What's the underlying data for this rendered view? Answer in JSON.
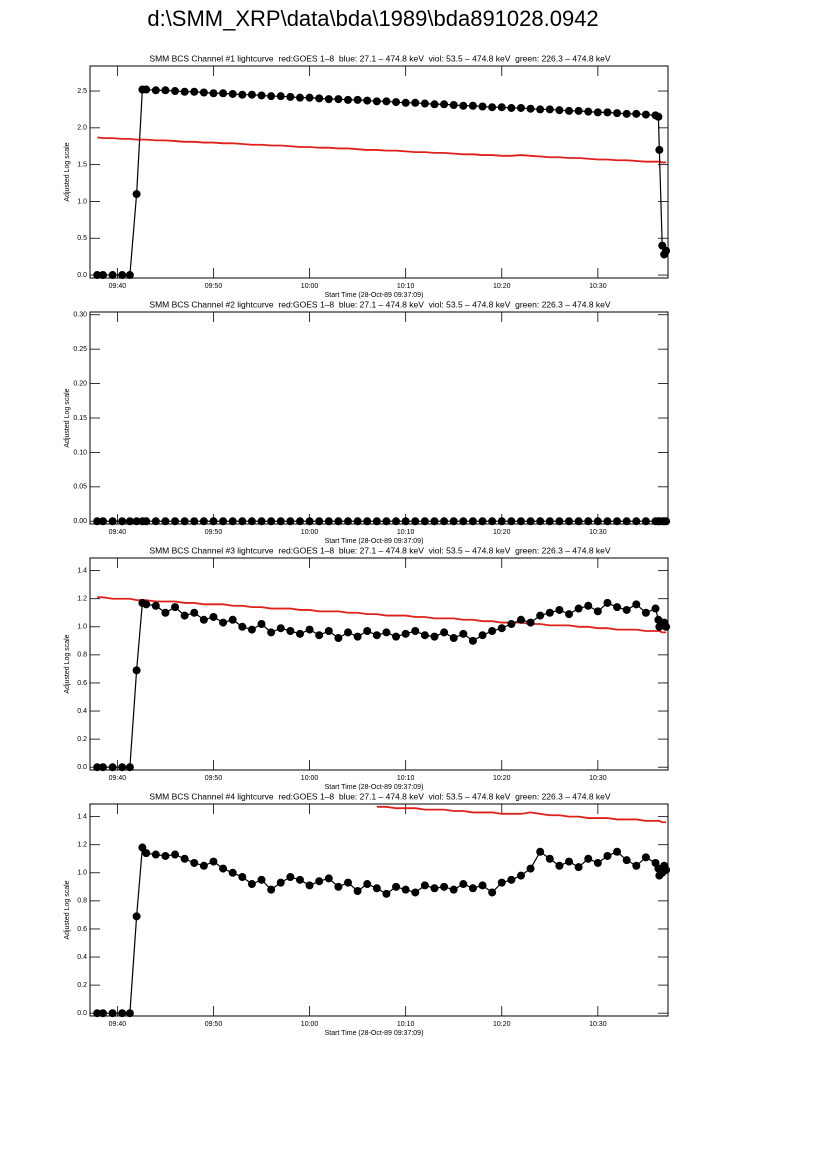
{
  "title": "d:\\SMM_XRP\\data\\bda\\1989\\bda891028.0942",
  "chart_data": [
    {
      "type": "line",
      "title": "SMM BCS Channel #1 lightcurve  red:GOES 1–8  blue: 27.1 – 474.8 keV  viol: 53.5 – 474.8 keV  green: 226.3 – 474.8 keV",
      "xlabel": "Start Time (28-Oct-89 09:37:09)",
      "ylabel": "Adjusted Log scale",
      "x": [
        577.9,
        578.5,
        579.5,
        580.5,
        581.3,
        582,
        582.6,
        583,
        584,
        585,
        586,
        587,
        588,
        589,
        590,
        591,
        592,
        593,
        594,
        595,
        596,
        597,
        598,
        599,
        600,
        601,
        602,
        603,
        604,
        605,
        606,
        607,
        608,
        609,
        610,
        611,
        612,
        613,
        614,
        615,
        616,
        617,
        618,
        619,
        620,
        621,
        622,
        623,
        624,
        625,
        626,
        627,
        628,
        629,
        630,
        631,
        632,
        633,
        634,
        635,
        636,
        636.3,
        636.4,
        636.7,
        636.9,
        637.1
      ],
      "xlim": [
        577.15,
        637.3
      ],
      "xticks": [
        {
          "value": 580,
          "label": "09:40"
        },
        {
          "value": 590,
          "label": "09:50"
        },
        {
          "value": 600,
          "label": "10:00"
        },
        {
          "value": 610,
          "label": "10:10"
        },
        {
          "value": 620,
          "label": "10:20"
        },
        {
          "value": 630,
          "label": "10:30"
        }
      ],
      "ylim": [
        -0.04,
        2.84
      ],
      "yticks": [
        {
          "value": 0,
          "label": "0.0"
        },
        {
          "value": 0.5,
          "label": "0.5"
        },
        {
          "value": 1,
          "label": "1.0"
        },
        {
          "value": 1.5,
          "label": "1.5"
        },
        {
          "value": 2,
          "label": "2.0"
        },
        {
          "value": 2.5,
          "label": "2.5"
        }
      ],
      "series": [
        {
          "color": "#e0201b",
          "values": [
            1.87,
            1.86,
            1.86,
            1.85,
            1.85,
            1.84,
            1.84,
            1.84,
            1.83,
            1.83,
            1.82,
            1.81,
            1.81,
            1.8,
            1.8,
            1.79,
            1.79,
            1.78,
            1.77,
            1.77,
            1.76,
            1.76,
            1.75,
            1.74,
            1.74,
            1.73,
            1.73,
            1.72,
            1.72,
            1.71,
            1.7,
            1.7,
            1.69,
            1.69,
            1.68,
            1.67,
            1.67,
            1.66,
            1.66,
            1.65,
            1.64,
            1.64,
            1.63,
            1.63,
            1.62,
            1.62,
            1.63,
            1.62,
            1.61,
            1.6,
            1.6,
            1.59,
            1.59,
            1.58,
            1.57,
            1.57,
            1.56,
            1.56,
            1.55,
            1.54,
            1.54,
            1.54,
            1.54,
            1.53,
            1.53,
            1.53
          ]
        },
        {
          "color": "#000000",
          "marker": "circle",
          "values": [
            0,
            0,
            0,
            0,
            0,
            1.1,
            2.52,
            2.52,
            2.51,
            2.51,
            2.5,
            2.49,
            2.49,
            2.48,
            2.47,
            2.47,
            2.46,
            2.45,
            2.45,
            2.44,
            2.43,
            2.43,
            2.42,
            2.41,
            2.41,
            2.4,
            2.39,
            2.39,
            2.38,
            2.38,
            2.37,
            2.36,
            2.36,
            2.35,
            2.34,
            2.34,
            2.33,
            2.32,
            2.32,
            2.31,
            2.3,
            2.3,
            2.29,
            2.28,
            2.28,
            2.27,
            2.27,
            2.26,
            2.25,
            2.25,
            2.24,
            2.23,
            2.23,
            2.22,
            2.21,
            2.21,
            2.2,
            2.19,
            2.19,
            2.18,
            2.17,
            2.15,
            1.7,
            0.4,
            0.28,
            0.33
          ]
        }
      ]
    },
    {
      "type": "line",
      "title": "SMM BCS Channel #2 lightcurve  red:GOES 1–8  blue: 27.1 – 474.8 keV  viol: 53.5 – 474.8 keV  green: 226.3 – 474.8 keV",
      "xlabel": "Start Time (28-Oct-89 09:37:09)",
      "ylabel": "Adjusted Log scale",
      "x": [
        577.9,
        578.5,
        579.5,
        580.5,
        581.3,
        582,
        582.6,
        583,
        584,
        585,
        586,
        587,
        588,
        589,
        590,
        591,
        592,
        593,
        594,
        595,
        596,
        597,
        598,
        599,
        600,
        601,
        602,
        603,
        604,
        605,
        606,
        607,
        608,
        609,
        610,
        611,
        612,
        613,
        614,
        615,
        616,
        617,
        618,
        619,
        620,
        621,
        622,
        623,
        624,
        625,
        626,
        627,
        628,
        629,
        630,
        631,
        632,
        633,
        634,
        635,
        636,
        636.3,
        636.4,
        636.7,
        636.9,
        637.1
      ],
      "xlim": [
        577.15,
        637.3
      ],
      "xticks": [
        {
          "value": 580,
          "label": "09:40"
        },
        {
          "value": 590,
          "label": "09:50"
        },
        {
          "value": 600,
          "label": "10:00"
        },
        {
          "value": 610,
          "label": "10:10"
        },
        {
          "value": 620,
          "label": "10:20"
        },
        {
          "value": 630,
          "label": "10:30"
        }
      ],
      "ylim": [
        -0.004,
        0.304
      ],
      "yticks": [
        {
          "value": 0,
          "label": "0.00"
        },
        {
          "value": 0.05,
          "label": "0.05"
        },
        {
          "value": 0.1,
          "label": "0.10"
        },
        {
          "value": 0.15,
          "label": "0.15"
        },
        {
          "value": 0.2,
          "label": "0.20"
        },
        {
          "value": 0.25,
          "label": "0.25"
        },
        {
          "value": 0.3,
          "label": "0.30"
        }
      ],
      "series": [
        {
          "color": "#000000",
          "marker": "circle",
          "values": [
            0,
            0,
            0,
            0,
            0,
            0,
            0,
            0,
            0,
            0,
            0,
            0,
            0,
            0,
            0,
            0,
            0,
            0,
            0,
            0,
            0,
            0,
            0,
            0,
            0,
            0,
            0,
            0,
            0,
            0,
            0,
            0,
            0,
            0,
            0,
            0,
            0,
            0,
            0,
            0,
            0,
            0,
            0,
            0,
            0,
            0,
            0,
            0,
            0,
            0,
            0,
            0,
            0,
            0,
            0,
            0,
            0,
            0,
            0,
            0,
            0,
            0,
            0,
            0,
            0,
            0
          ]
        }
      ]
    },
    {
      "type": "line",
      "title": "SMM BCS Channel #3 lightcurve  red:GOES 1–8  blue: 27.1 – 474.8 keV  viol: 53.5 – 474.8 keV  green: 226.3 – 474.8 keV",
      "xlabel": "Start Time (28-Oct-89 09:37:09)",
      "ylabel": "Adjusted Log scale",
      "x": [
        577.9,
        578.5,
        579.5,
        580.5,
        581.3,
        582,
        582.6,
        583,
        584,
        585,
        586,
        587,
        588,
        589,
        590,
        591,
        592,
        593,
        594,
        595,
        596,
        597,
        598,
        599,
        600,
        601,
        602,
        603,
        604,
        605,
        606,
        607,
        608,
        609,
        610,
        611,
        612,
        613,
        614,
        615,
        616,
        617,
        618,
        619,
        620,
        621,
        622,
        623,
        624,
        625,
        626,
        627,
        628,
        629,
        630,
        631,
        632,
        633,
        634,
        635,
        636,
        636.3,
        636.4,
        636.7,
        636.9,
        637.1
      ],
      "xlim": [
        577.15,
        637.3
      ],
      "xticks": [
        {
          "value": 580,
          "label": "09:40"
        },
        {
          "value": 590,
          "label": "09:50"
        },
        {
          "value": 600,
          "label": "10:00"
        },
        {
          "value": 610,
          "label": "10:10"
        },
        {
          "value": 620,
          "label": "10:20"
        },
        {
          "value": 630,
          "label": "10:30"
        }
      ],
      "ylim": [
        -0.02,
        1.49
      ],
      "yticks": [
        {
          "value": 0,
          "label": "0.0"
        },
        {
          "value": 0.2,
          "label": "0.2"
        },
        {
          "value": 0.4,
          "label": "0.4"
        },
        {
          "value": 0.6,
          "label": "0.6"
        },
        {
          "value": 0.8,
          "label": "0.8"
        },
        {
          "value": 1,
          "label": "1.0"
        },
        {
          "value": 1.2,
          "label": "1.2"
        },
        {
          "value": 1.4,
          "label": "1.4"
        }
      ],
      "series": [
        {
          "color": "#e0201b",
          "values": [
            1.21,
            1.21,
            1.2,
            1.2,
            1.2,
            1.19,
            1.19,
            1.19,
            1.18,
            1.18,
            1.18,
            1.17,
            1.17,
            1.16,
            1.16,
            1.16,
            1.15,
            1.15,
            1.14,
            1.14,
            1.13,
            1.13,
            1.13,
            1.12,
            1.12,
            1.11,
            1.11,
            1.11,
            1.1,
            1.1,
            1.09,
            1.09,
            1.08,
            1.08,
            1.08,
            1.07,
            1.07,
            1.06,
            1.06,
            1.06,
            1.05,
            1.05,
            1.04,
            1.04,
            1.03,
            1.03,
            1.03,
            1.02,
            1.02,
            1.01,
            1.01,
            1.01,
            1.0,
            1.0,
            0.99,
            0.99,
            0.98,
            0.98,
            0.98,
            0.97,
            0.97,
            0.97,
            0.97,
            0.96,
            0.96,
            0.96
          ]
        },
        {
          "color": "#000000",
          "marker": "circle",
          "values": [
            0,
            0,
            0,
            0,
            0,
            0.69,
            1.17,
            1.16,
            1.15,
            1.1,
            1.14,
            1.08,
            1.1,
            1.05,
            1.07,
            1.03,
            1.05,
            1.0,
            0.98,
            1.02,
            0.96,
            0.99,
            0.97,
            0.95,
            0.98,
            0.94,
            0.97,
            0.92,
            0.96,
            0.93,
            0.97,
            0.94,
            0.96,
            0.93,
            0.95,
            0.97,
            0.94,
            0.93,
            0.96,
            0.92,
            0.95,
            0.9,
            0.94,
            0.97,
            0.99,
            1.02,
            1.05,
            1.03,
            1.08,
            1.1,
            1.12,
            1.09,
            1.13,
            1.15,
            1.11,
            1.17,
            1.14,
            1.12,
            1.16,
            1.1,
            1.13,
            1.05,
            1.0,
            1.02,
            1.03,
            1.0
          ]
        }
      ]
    },
    {
      "type": "line",
      "title": "SMM BCS Channel #4 lightcurve  red:GOES 1–8  blue: 27.1 – 474.8 keV  viol: 53.5 – 474.8 keV  green: 226.3 – 474.8 keV",
      "xlabel": "Start Time (28-Oct-89 09:37:09)",
      "ylabel": "Adjusted Log scale",
      "x": [
        577.9,
        578.5,
        579.5,
        580.5,
        581.3,
        582,
        582.6,
        583,
        584,
        585,
        586,
        587,
        588,
        589,
        590,
        591,
        592,
        593,
        594,
        595,
        596,
        597,
        598,
        599,
        600,
        601,
        602,
        603,
        604,
        605,
        606,
        607,
        608,
        609,
        610,
        611,
        612,
        613,
        614,
        615,
        616,
        617,
        618,
        619,
        620,
        621,
        622,
        623,
        624,
        625,
        626,
        627,
        628,
        629,
        630,
        631,
        632,
        633,
        634,
        635,
        636,
        636.3,
        636.4,
        636.7,
        636.9,
        637.1
      ],
      "xlim": [
        577.15,
        637.3
      ],
      "xticks": [
        {
          "value": 580,
          "label": "09:40"
        },
        {
          "value": 590,
          "label": "09:50"
        },
        {
          "value": 600,
          "label": "10:00"
        },
        {
          "value": 610,
          "label": "10:10"
        },
        {
          "value": 620,
          "label": "10:20"
        },
        {
          "value": 630,
          "label": "10:30"
        }
      ],
      "ylim": [
        -0.02,
        1.49
      ],
      "yticks": [
        {
          "value": 0,
          "label": "0.0"
        },
        {
          "value": 0.2,
          "label": "0.2"
        },
        {
          "value": 0.4,
          "label": "0.4"
        },
        {
          "value": 0.6,
          "label": "0.6"
        },
        {
          "value": 0.8,
          "label": "0.8"
        },
        {
          "value": 1,
          "label": "1.0"
        },
        {
          "value": 1.2,
          "label": "1.2"
        },
        {
          "value": 1.4,
          "label": "1.4"
        }
      ],
      "series": [
        {
          "color": "#e0201b",
          "values": [
            null,
            null,
            null,
            null,
            null,
            null,
            null,
            null,
            null,
            null,
            null,
            null,
            null,
            null,
            null,
            null,
            null,
            null,
            null,
            null,
            null,
            null,
            null,
            null,
            null,
            null,
            null,
            null,
            null,
            null,
            null,
            1.47,
            1.47,
            1.46,
            1.46,
            1.46,
            1.45,
            1.45,
            1.45,
            1.44,
            1.44,
            1.43,
            1.43,
            1.43,
            1.42,
            1.42,
            1.42,
            1.43,
            1.42,
            1.41,
            1.41,
            1.4,
            1.4,
            1.39,
            1.39,
            1.39,
            1.38,
            1.38,
            1.38,
            1.37,
            1.37,
            1.37,
            1.37,
            1.36,
            1.36,
            1.36
          ]
        },
        {
          "color": "#000000",
          "marker": "circle",
          "values": [
            0,
            0,
            0,
            0,
            0,
            0.69,
            1.18,
            1.14,
            1.13,
            1.12,
            1.13,
            1.1,
            1.07,
            1.05,
            1.08,
            1.03,
            1.0,
            0.97,
            0.92,
            0.95,
            0.88,
            0.93,
            0.97,
            0.95,
            0.91,
            0.94,
            0.96,
            0.9,
            0.93,
            0.87,
            0.92,
            0.89,
            0.85,
            0.9,
            0.88,
            0.86,
            0.91,
            0.89,
            0.9,
            0.88,
            0.92,
            0.89,
            0.91,
            0.86,
            0.93,
            0.95,
            0.98,
            1.03,
            1.15,
            1.1,
            1.05,
            1.08,
            1.04,
            1.1,
            1.07,
            1.12,
            1.15,
            1.09,
            1.05,
            1.11,
            1.07,
            1.03,
            0.98,
            1.0,
            1.05,
            1.02
          ]
        }
      ]
    }
  ]
}
